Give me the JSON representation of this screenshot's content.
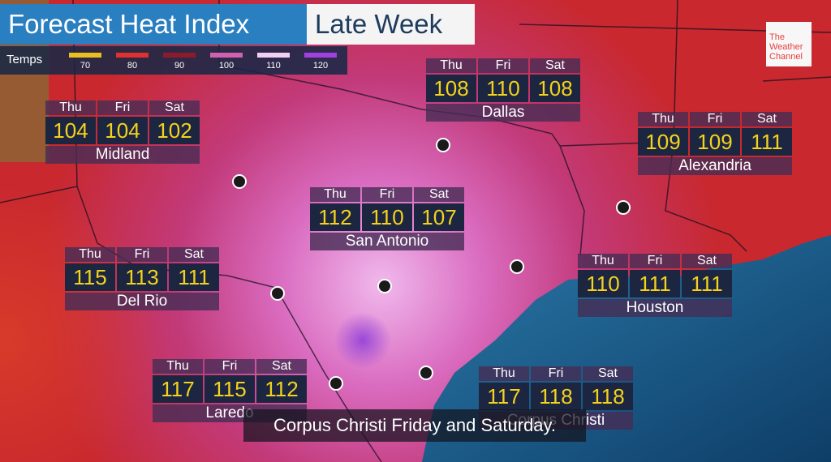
{
  "header": {
    "title": "Forecast Heat Index",
    "subtitle": "Late Week"
  },
  "legend": {
    "label": "Temps",
    "items": [
      {
        "value": 70,
        "color": "#e8c020"
      },
      {
        "value": 80,
        "color": "#e03030"
      },
      {
        "value": 90,
        "color": "#8e1a2e"
      },
      {
        "value": 100,
        "color": "#d060b0"
      },
      {
        "value": 110,
        "color": "#f2d0f2"
      },
      {
        "value": 120,
        "color": "#a040e0"
      }
    ]
  },
  "logo": [
    "The",
    "Weather",
    "Channel"
  ],
  "cities": [
    {
      "name": "Midland",
      "days": [
        "Thu",
        "Fri",
        "Sat"
      ],
      "values": [
        104,
        104,
        102
      ]
    },
    {
      "name": "Dallas",
      "days": [
        "Thu",
        "Fri",
        "Sat"
      ],
      "values": [
        108,
        110,
        108
      ]
    },
    {
      "name": "Alexandria",
      "days": [
        "Thu",
        "Fri",
        "Sat"
      ],
      "values": [
        109,
        109,
        111
      ]
    },
    {
      "name": "San Antonio",
      "days": [
        "Thu",
        "Fri",
        "Sat"
      ],
      "values": [
        112,
        110,
        107
      ]
    },
    {
      "name": "Del Rio",
      "days": [
        "Thu",
        "Fri",
        "Sat"
      ],
      "values": [
        115,
        113,
        111
      ]
    },
    {
      "name": "Houston",
      "days": [
        "Thu",
        "Fri",
        "Sat"
      ],
      "values": [
        110,
        111,
        111
      ]
    },
    {
      "name": "Laredo",
      "days": [
        "Thu",
        "Fri",
        "Sat"
      ],
      "values": [
        117,
        115,
        112
      ]
    },
    {
      "name": "Corpus Christi",
      "days": [
        "Thu",
        "Fri",
        "Sat"
      ],
      "values": [
        117,
        118,
        118
      ]
    }
  ],
  "caption": "Corpus Christi Friday and Saturday."
}
